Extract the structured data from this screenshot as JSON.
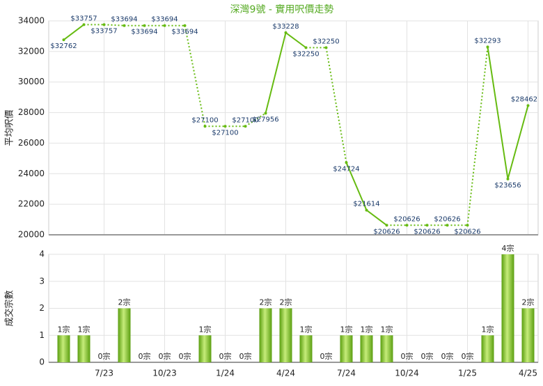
{
  "chart_data": [
    {
      "type": "line",
      "title": "深灣9號 - 實用呎價走勢",
      "ylabel": "平均呎價",
      "categories": [
        null,
        null,
        "7/23",
        null,
        null,
        "10/23",
        null,
        null,
        "1/24",
        null,
        null,
        "4/24",
        null,
        null,
        "7/24",
        null,
        null,
        "10/24",
        null,
        null,
        "1/25",
        null,
        null,
        "4/25"
      ],
      "series": [
        {
          "name": "平均呎價",
          "color": "#66bb11",
          "values": [
            32762,
            33757,
            33757,
            33694,
            33694,
            33694,
            33694,
            27100,
            27100,
            27100,
            27956,
            33228,
            32250,
            32250,
            24724,
            21614,
            20626,
            20626,
            20626,
            20626,
            20626,
            32293,
            23656,
            28462
          ],
          "value_labels": [
            "$32762",
            "$33757",
            "$33757",
            "$33694",
            "$33694",
            "$33694",
            "$33694",
            "$27100",
            "$27100",
            "$27100",
            "$27956",
            "$33228",
            "$32250",
            "$32250",
            "$24724",
            "$21614",
            "$20626",
            "$20626",
            "$20626",
            "$20626",
            "$20626",
            "$32293",
            "$23656",
            "$28462"
          ]
        }
      ],
      "ylim": [
        20000,
        34000
      ],
      "yticks": [
        20000,
        22000,
        24000,
        26000,
        28000,
        30000,
        32000,
        34000
      ],
      "grid": true
    },
    {
      "type": "bar",
      "ylabel": "成交宗數",
      "categories": [
        null,
        null,
        "7/23",
        null,
        null,
        "10/23",
        null,
        null,
        "1/24",
        null,
        null,
        "4/24",
        null,
        null,
        "7/24",
        null,
        null,
        "10/24",
        null,
        null,
        "1/25",
        null,
        null,
        "4/25"
      ],
      "series": [
        {
          "name": "成交宗數",
          "color": "#77bb22",
          "values": [
            1,
            1,
            0,
            2,
            0,
            0,
            0,
            1,
            0,
            0,
            2,
            2,
            1,
            0,
            1,
            1,
            1,
            0,
            0,
            0,
            0,
            1,
            4,
            2
          ],
          "value_labels": [
            "1宗",
            "1宗",
            "0宗",
            "2宗",
            "0宗",
            "0宗",
            "0宗",
            "1宗",
            "0宗",
            "0宗",
            "2宗",
            "2宗",
            "1宗",
            "0宗",
            "1宗",
            "1宗",
            "1宗",
            "0宗",
            "0宗",
            "0宗",
            "0宗",
            "1宗",
            "4宗",
            "2宗"
          ]
        }
      ],
      "ylim": [
        0,
        4
      ],
      "yticks": [
        0,
        1,
        2,
        3,
        4
      ],
      "grid": true
    }
  ]
}
